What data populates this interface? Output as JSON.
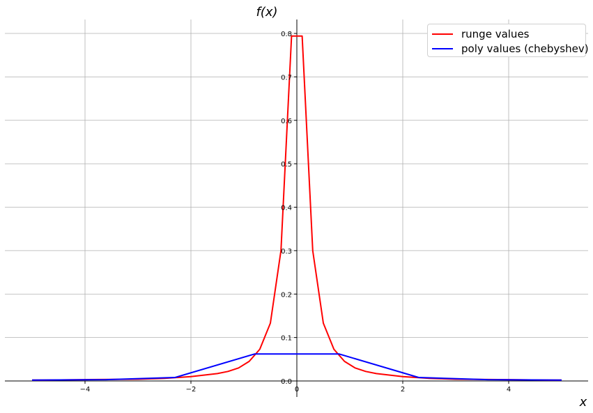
{
  "chart_data": {
    "type": "line",
    "xlabel": "$x$",
    "ylabel": "$f(x)$",
    "xlabel_display": "x",
    "ylabel_display_parts": [
      "f",
      "(",
      "x",
      ")"
    ],
    "xlim": [
      -5.4,
      5.6
    ],
    "ylim": [
      0,
      0.83
    ],
    "xticks": [
      -4,
      -2,
      0,
      2,
      4
    ],
    "xtick_labels": [
      "−4",
      "−2",
      "0",
      "2",
      "4"
    ],
    "yticks": [
      0.0,
      0.1,
      0.2,
      0.3,
      0.4,
      0.5,
      0.6,
      0.7,
      0.8
    ],
    "ytick_labels": [
      "0.0",
      "0.1",
      "0.2",
      "0.3",
      "0.4",
      "0.5",
      "0.6",
      "0.7",
      "0.8"
    ],
    "grid": true,
    "legend_position": "top-right",
    "series": [
      {
        "name": "runge values",
        "color": "#ff0000",
        "points": [
          [
            -5.0,
            0.002
          ],
          [
            -4.8,
            0.002
          ],
          [
            -4.0,
            0.003
          ],
          [
            -3.0,
            0.004
          ],
          [
            -2.5,
            0.006
          ],
          [
            -2.0,
            0.01
          ],
          [
            -1.5,
            0.017
          ],
          [
            -1.3,
            0.022
          ],
          [
            -1.1,
            0.03
          ],
          [
            -0.9,
            0.045
          ],
          [
            -0.7,
            0.073
          ],
          [
            -0.5,
            0.133
          ],
          [
            -0.3,
            0.3
          ],
          [
            -0.1,
            0.794
          ],
          [
            0.1,
            0.794
          ],
          [
            0.3,
            0.3
          ],
          [
            0.5,
            0.133
          ],
          [
            0.7,
            0.073
          ],
          [
            0.9,
            0.045
          ],
          [
            1.1,
            0.03
          ],
          [
            1.3,
            0.022
          ],
          [
            1.5,
            0.017
          ],
          [
            2.0,
            0.01
          ],
          [
            2.5,
            0.006
          ],
          [
            3.0,
            0.004
          ],
          [
            4.0,
            0.003
          ],
          [
            4.8,
            0.002
          ],
          [
            5.0,
            0.002
          ]
        ]
      },
      {
        "name": "poly values (chebyshev)",
        "color": "#0000ff",
        "points": [
          [
            -5.0,
            0.002
          ],
          [
            -3.6,
            0.003
          ],
          [
            -2.3,
            0.008
          ],
          [
            -0.8,
            0.062
          ],
          [
            0.8,
            0.062
          ],
          [
            2.3,
            0.008
          ],
          [
            3.6,
            0.003
          ],
          [
            5.0,
            0.002
          ]
        ]
      }
    ]
  },
  "legend": {
    "items": [
      {
        "label": "runge values",
        "color": "#ff0000"
      },
      {
        "label": "poly values (chebyshev)",
        "color": "#0000ff"
      }
    ]
  }
}
